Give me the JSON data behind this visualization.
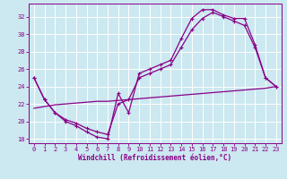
{
  "xlabel": "Windchill (Refroidissement éolien,°C)",
  "background_color": "#cce8f0",
  "grid_color": "#ffffff",
  "line_color": "#880088",
  "xlim": [
    -0.5,
    23.5
  ],
  "ylim": [
    17.5,
    33.5
  ],
  "xticks": [
    0,
    1,
    2,
    3,
    4,
    5,
    6,
    7,
    8,
    9,
    10,
    11,
    12,
    13,
    14,
    15,
    16,
    17,
    18,
    19,
    20,
    21,
    22,
    23
  ],
  "yticks": [
    18,
    20,
    22,
    24,
    26,
    28,
    30,
    32
  ],
  "line1_x": [
    0,
    1,
    2,
    3,
    4,
    5,
    6,
    7,
    8,
    9,
    10,
    11,
    12,
    13,
    14,
    15,
    16,
    17,
    18,
    19,
    20,
    21,
    22,
    23
  ],
  "line1_y": [
    25.0,
    22.5,
    21.0,
    20.0,
    19.5,
    18.8,
    18.2,
    18.0,
    23.2,
    21.0,
    25.5,
    26.0,
    26.5,
    27.0,
    29.5,
    31.8,
    32.8,
    32.8,
    32.2,
    31.8,
    31.8,
    28.8,
    25.0,
    24.0
  ],
  "line2_x": [
    0,
    1,
    2,
    3,
    4,
    5,
    6,
    7,
    8,
    9,
    10,
    11,
    12,
    13,
    14,
    15,
    16,
    17,
    18,
    19,
    20,
    21,
    22,
    23
  ],
  "line2_y": [
    25.0,
    22.5,
    21.0,
    20.2,
    19.8,
    19.2,
    18.8,
    18.5,
    22.0,
    22.5,
    25.0,
    25.5,
    26.0,
    26.5,
    28.5,
    30.5,
    31.8,
    32.5,
    32.0,
    31.5,
    31.0,
    28.5,
    25.0,
    24.0
  ],
  "line3_x": [
    0,
    1,
    2,
    3,
    4,
    5,
    6,
    7,
    8,
    9,
    10,
    11,
    12,
    13,
    14,
    15,
    16,
    17,
    18,
    19,
    20,
    21,
    22,
    23
  ],
  "line3_y": [
    21.5,
    21.7,
    21.9,
    22.0,
    22.1,
    22.2,
    22.3,
    22.3,
    22.4,
    22.5,
    22.6,
    22.7,
    22.8,
    22.9,
    23.0,
    23.1,
    23.2,
    23.3,
    23.4,
    23.5,
    23.6,
    23.7,
    23.8,
    24.0
  ],
  "tick_labelsize": 5,
  "xlabel_fontsize": 5.5
}
